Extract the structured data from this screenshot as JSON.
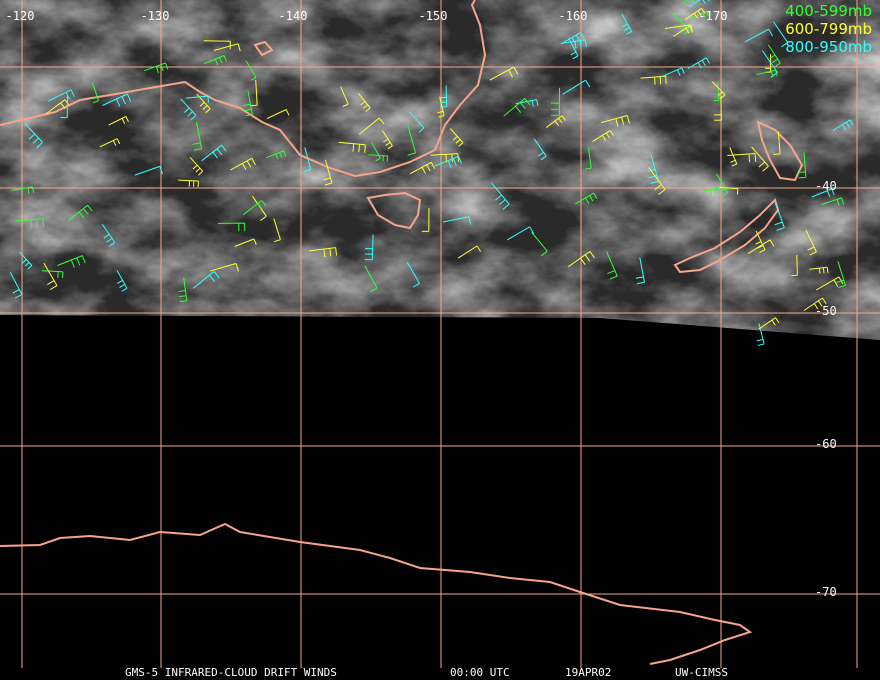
{
  "map": {
    "longitude_labels": [
      "-120",
      "-130",
      "-140",
      "-150",
      "-160",
      "-170"
    ],
    "latitude_labels": [
      "-40",
      "-50",
      "-60",
      "-70"
    ],
    "legend": [
      {
        "label": "400-599mb",
        "color": "#33ff33"
      },
      {
        "label": "600-799mb",
        "color": "#ffff33"
      },
      {
        "label": "800-950mb",
        "color": "#33ffff"
      }
    ],
    "footer": [
      "GMS-5 INFRARED-CLOUD DRIFT WINDS",
      "00:00 UTC",
      "19APR02",
      "UW-CIMSS"
    ]
  }
}
